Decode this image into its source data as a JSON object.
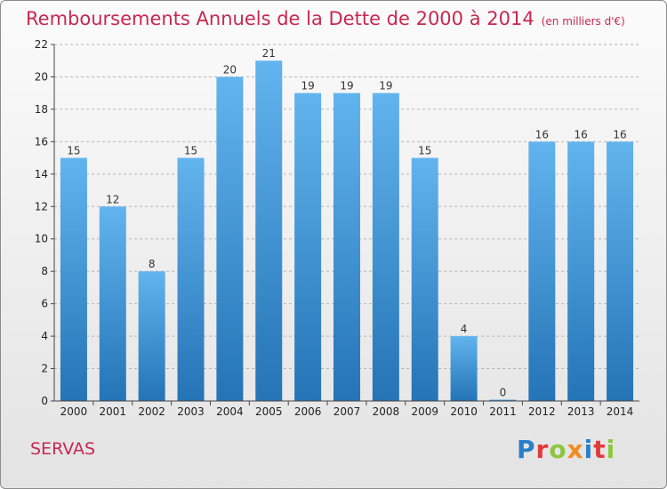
{
  "header": {
    "title": "Remboursements Annuels de la Dette de 2000 à 2014",
    "unit": "(en milliers d'€)"
  },
  "footer": {
    "commune": "SERVAS",
    "logo_letters": [
      "P",
      "r",
      "o",
      "x",
      "i",
      "t",
      "i"
    ],
    "logo_colors": [
      "#2a7fc9",
      "#e23a3a",
      "#8cc63f",
      "#f28c1e",
      "#2a7fc9",
      "#e23a3a",
      "#8cc63f"
    ]
  },
  "colors": {
    "bar_top": "#62b4ee",
    "bar_bottom": "#2474b6",
    "axis": "#444444",
    "grid": "#b5b5b5"
  },
  "chart_data": {
    "type": "bar",
    "categories": [
      "2000",
      "2001",
      "2002",
      "2003",
      "2004",
      "2005",
      "2006",
      "2007",
      "2008",
      "2009",
      "2010",
      "2011",
      "2012",
      "2013",
      "2014"
    ],
    "values": [
      15,
      12,
      8,
      15,
      20,
      21,
      19,
      19,
      19,
      15,
      4,
      0,
      16,
      16,
      16
    ],
    "data_labels": [
      "15",
      "12",
      "8",
      "15",
      "20",
      "21",
      "19",
      "19",
      "19",
      "15",
      "4",
      "0",
      "16",
      "16",
      "16"
    ],
    "ylim": [
      0,
      22
    ],
    "yticks": [
      0,
      2,
      4,
      6,
      8,
      10,
      12,
      14,
      16,
      18,
      20,
      22
    ],
    "grid": true
  }
}
